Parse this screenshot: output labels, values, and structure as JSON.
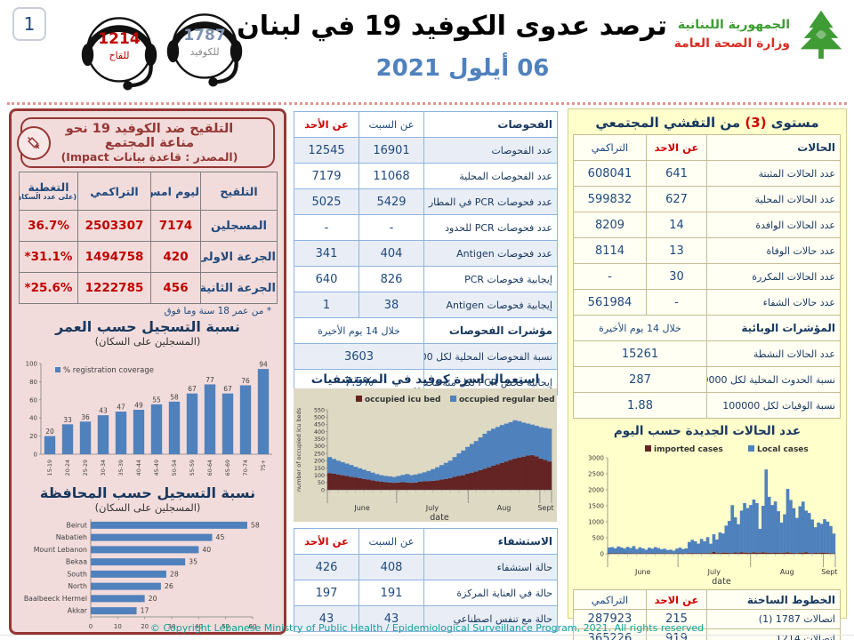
{
  "page": {
    "number": "1",
    "copyright": "© Copyright Lebanese Ministry of Public Health / Epidemiological Surveillance Program, 2021. All rights reserved"
  },
  "header": {
    "title": "ترصد عدوى الكوفيد 19 في لبنان",
    "date": "06 أيلول 2021",
    "hotline_vaccine": {
      "number": "1214",
      "label": "للقاح"
    },
    "hotline_covid": {
      "number": "1787",
      "label": "للكوفيد"
    },
    "ministry_line1": "الجمهورية اللبنانية",
    "ministry_line2": "وزارة الصحة العامة"
  },
  "vaccination": {
    "title": "التلقيح ضد الكوفيد 19  نحو مناعة المجتمع",
    "subtitle": "(المصدر : قاعدة بيانات Impact)",
    "col_type": "التلقيح",
    "col_yesterday": "ليوم امس",
    "col_cumulative": "التراكمي",
    "col_coverage": "التغطية",
    "col_coverage_sub": "(على عدد السكان)",
    "rows": [
      {
        "label": "المسجلين",
        "yesterday": "7174",
        "cumulative": "2503307",
        "coverage": "36.7%"
      },
      {
        "label": "الجرعة الاولى",
        "yesterday": "420",
        "cumulative": "1494758",
        "coverage": "*31.1%"
      },
      {
        "label": "الجرعة الثانية",
        "yesterday": "456",
        "cumulative": "1222785",
        "coverage": "*25.6%"
      }
    ],
    "footnote": "* من عمر 18 سنة وما فوق"
  },
  "tests": {
    "col_label": "الفحوصات",
    "col_sat": "عن السبت",
    "col_sun": "عن الأحد",
    "rows": [
      {
        "label": "عدد الفحوصات",
        "sat": "16901",
        "sun": "12545"
      },
      {
        "label": "عدد الفحوصات المحلية",
        "sat": "11068",
        "sun": "7179"
      },
      {
        "label": "عدد فحوصات PCR في المطار",
        "sat": "5429",
        "sun": "5025"
      },
      {
        "label": "عدد فحوصات PCR للحدود",
        "sat": "-",
        "sun": "-"
      },
      {
        "label": "عدد فحوصات Antigen",
        "sat": "404",
        "sun": "341"
      },
      {
        "label": "إيجابية فحوصات  PCR",
        "sat": "826",
        "sun": "640"
      },
      {
        "label": "إيجابية فحوصات  Antigen",
        "sat": "38",
        "sun": "1"
      }
    ],
    "indicators_label": "مؤشرات الفحوصات",
    "indicators_period": "خلال 14 يوم الأخيرة",
    "ind_rows": [
      {
        "label": "نسبة الفحوصات  المحلية لكل 100000",
        "value": "3603"
      },
      {
        "label": "إيجابية فحص PCR لكل مئة فحص",
        "value": "7.5%"
      }
    ]
  },
  "hospitalization": {
    "col_label": "الاستشفاء",
    "col_sat": "عن السبت",
    "col_sun": "عن الأحد",
    "rows": [
      {
        "label": "حالة استشفاء",
        "sat": "408",
        "sun": "426"
      },
      {
        "label": "حالة في العناية المركزة",
        "sat": "191",
        "sun": "197"
      },
      {
        "label": "حالة مع تنفس اصطناعي",
        "sat": "43",
        "sun": "43"
      }
    ]
  },
  "outbreak": {
    "title_a": "مستوى ",
    "title_num": "(3)",
    "title_b": " من التفشي المجتمعي",
    "col_label": "الحالات",
    "col_sun": "عن الاحد",
    "col_cum": "التراكمي",
    "rows": [
      {
        "label": "عدد الحالات المثبتة",
        "sun": "641",
        "cum": "608041"
      },
      {
        "label": "عدد الحالات المحلية",
        "sun": "627",
        "cum": "599832"
      },
      {
        "label": "عدد الحالات الوافدة",
        "sun": "14",
        "cum": "8209"
      },
      {
        "label": "عدد حالات الوفاة",
        "sun": "13",
        "cum": "8114"
      },
      {
        "label": "عدد الحالات المكررة",
        "sun": "30",
        "cum": "-"
      },
      {
        "label": "عدد حالات الشفاء",
        "sun": "-",
        "cum": "561984"
      }
    ],
    "indicators_label": "المؤشرات الوبائية",
    "indicators_period": "خلال 14 يوم الأخيرة",
    "ind_rows": [
      {
        "label": "عدد الحالات النشطة",
        "value": "15261"
      },
      {
        "label": "نسبة الحدوث المحلية لكل 100000",
        "value": "287"
      },
      {
        "label": "نسبة الوفيات لكل 100000",
        "value": "1.88"
      }
    ]
  },
  "hotlines": {
    "col_label": "الخطوط الساخنة",
    "col_sun": "عن الاحد",
    "col_cum": "التراكمي",
    "rows": [
      {
        "label": "اتصالات 1787 (1)",
        "sun": "215",
        "cum": "287923"
      },
      {
        "label": "اتصالات 1214",
        "sun": "919",
        "cum": "365226"
      }
    ]
  },
  "chart_data": [
    {
      "type": "bar",
      "title": "نسبة التسجيل حسب العمر",
      "subtitle": "(المسجلين على السكان)",
      "legend": [
        "% registration coverage"
      ],
      "categories": [
        "15-19",
        "20-24",
        "25-29",
        "30-34",
        "35-39",
        "40-44",
        "45-49",
        "50-54",
        "55-59",
        "60-64",
        "65-69",
        "70-74",
        "75+"
      ],
      "values": [
        20,
        33,
        36,
        43,
        47,
        49,
        55,
        58,
        67,
        77,
        67,
        76,
        94
      ],
      "ylim": [
        0,
        100
      ],
      "yticks": [
        0,
        20,
        40,
        60,
        80,
        100
      ],
      "bar_color": "#4F81BD"
    },
    {
      "type": "bar",
      "orientation": "horizontal",
      "title": "نسبة التسجيل حسب المحافظة",
      "subtitle": "(المسجلين على السكان)",
      "categories": [
        "Beirut",
        "Nabatieh",
        "Mount Lebanon",
        "Bekaa",
        "South",
        "North",
        "Baalbeeck Hermel",
        "Akkar"
      ],
      "values": [
        58,
        45,
        40,
        35,
        28,
        26,
        20,
        17
      ],
      "xlim": [
        0,
        60
      ],
      "xticks": [
        0,
        10,
        20,
        30,
        40,
        50,
        60
      ],
      "bar_color": "#4F81BD"
    },
    {
      "type": "area",
      "title": "استعمال اسرة كوفيد في المستشفيات حسب اليوم",
      "ylabel": "number of occupied icu beds",
      "xlabel": "date",
      "months": [
        "June",
        "July",
        "Aug",
        "Sept"
      ],
      "ylim": [
        0,
        550
      ],
      "ytick_step": 50,
      "series": [
        {
          "name": "occupied icu bed",
          "color": "#632423",
          "values": [
            115,
            110,
            105,
            100,
            95,
            90,
            85,
            80,
            75,
            70,
            65,
            60,
            55,
            52,
            50,
            48,
            50,
            52,
            50,
            48,
            50,
            55,
            58,
            60,
            62,
            65,
            70,
            75,
            80,
            90,
            95,
            100,
            110,
            118,
            125,
            135,
            145,
            155,
            165,
            175,
            185,
            195,
            205,
            215,
            222,
            228,
            235,
            238,
            230,
            215,
            205,
            195
          ]
        },
        {
          "name": "occupied regular bed",
          "color": "#4F81BD",
          "values": [
            110,
            102,
            95,
            90,
            85,
            80,
            73,
            68,
            63,
            58,
            53,
            48,
            45,
            43,
            42,
            40,
            45,
            50,
            58,
            52,
            55,
            57,
            62,
            70,
            80,
            90,
            100,
            110,
            120,
            135,
            155,
            170,
            185,
            197,
            210,
            225,
            240,
            250,
            255,
            257,
            260,
            260,
            260,
            263,
            250,
            234,
            220,
            210,
            210,
            215,
            220,
            225
          ]
        }
      ]
    },
    {
      "type": "bar",
      "title": "عدد الحالات الجديدة حسب اليوم",
      "xlabel": "date",
      "months": [
        "June",
        "July",
        "Aug",
        "Sept"
      ],
      "ylim": [
        0,
        3000
      ],
      "ytick_step": 500,
      "series": [
        {
          "name": "imported cases",
          "color": "#632423",
          "values": [
            15,
            10,
            12,
            8,
            10,
            14,
            8,
            12,
            10,
            8,
            12,
            9,
            8,
            10,
            12,
            9,
            8,
            10,
            9,
            7,
            8,
            6,
            10,
            12,
            9,
            8,
            20,
            15,
            12,
            18,
            15,
            12,
            20,
            15,
            60,
            25,
            20,
            35,
            30,
            25,
            20,
            40,
            25,
            50,
            35,
            30,
            25,
            45,
            35,
            30,
            50,
            35,
            30,
            25,
            35,
            30,
            25,
            35,
            45,
            30,
            25,
            20,
            35,
            30,
            50,
            25,
            20,
            30,
            25,
            35,
            30,
            25,
            18,
            12
          ]
        },
        {
          "name": "Local cases",
          "color": "#4F81BD",
          "values": [
            180,
            200,
            160,
            220,
            190,
            150,
            210,
            170,
            230,
            140,
            190,
            160,
            120,
            180,
            150,
            200,
            170,
            130,
            150,
            110,
            120,
            90,
            150,
            180,
            140,
            160,
            350,
            420,
            380,
            300,
            450,
            380,
            500,
            300,
            550,
            420,
            650,
            600,
            850,
            1000,
            1500,
            1100,
            900,
            1300,
            1550,
            1400,
            1500,
            1650,
            1550,
            750,
            1450,
            2600,
            1750,
            1500,
            1600,
            1300,
            950,
            1200,
            1980,
            1650,
            1400,
            1100,
            1450,
            1600,
            1300,
            1250,
            1050,
            800,
            950,
            900,
            1050,
            980,
            850,
            620
          ]
        }
      ]
    }
  ]
}
